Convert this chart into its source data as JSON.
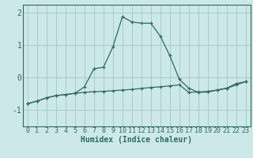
{
  "x": [
    0,
    1,
    2,
    3,
    4,
    5,
    6,
    7,
    8,
    9,
    10,
    11,
    12,
    13,
    14,
    15,
    16,
    17,
    18,
    19,
    20,
    21,
    22,
    23
  ],
  "line1": [
    -0.8,
    -0.72,
    -0.62,
    -0.55,
    -0.52,
    -0.48,
    -0.28,
    0.28,
    0.32,
    0.95,
    1.88,
    1.72,
    1.68,
    1.68,
    1.28,
    0.68,
    -0.05,
    -0.32,
    -0.45,
    -0.44,
    -0.38,
    -0.32,
    -0.18,
    -0.12
  ],
  "line2": [
    -0.8,
    -0.72,
    -0.62,
    -0.55,
    -0.52,
    -0.48,
    -0.45,
    -0.43,
    -0.42,
    -0.4,
    -0.38,
    -0.36,
    -0.33,
    -0.3,
    -0.28,
    -0.25,
    -0.22,
    -0.45,
    -0.44,
    -0.42,
    -0.38,
    -0.33,
    -0.22,
    -0.12
  ],
  "color": "#2e6b60",
  "bg_color": "#cce8e8",
  "grid_color": "#a8cccc",
  "xlabel": "Humidex (Indice chaleur)",
  "ylim": [
    -1.5,
    2.25
  ],
  "xlim": [
    -0.5,
    23.5
  ],
  "yticks": [
    -1,
    0,
    1,
    2
  ],
  "xticks": [
    0,
    1,
    2,
    3,
    4,
    5,
    6,
    7,
    8,
    9,
    10,
    11,
    12,
    13,
    14,
    15,
    16,
    17,
    18,
    19,
    20,
    21,
    22,
    23
  ],
  "marker": "+",
  "markersize": 3.5,
  "linewidth": 0.9,
  "tick_fontsize": 6.0,
  "xlabel_fontsize": 7.0
}
